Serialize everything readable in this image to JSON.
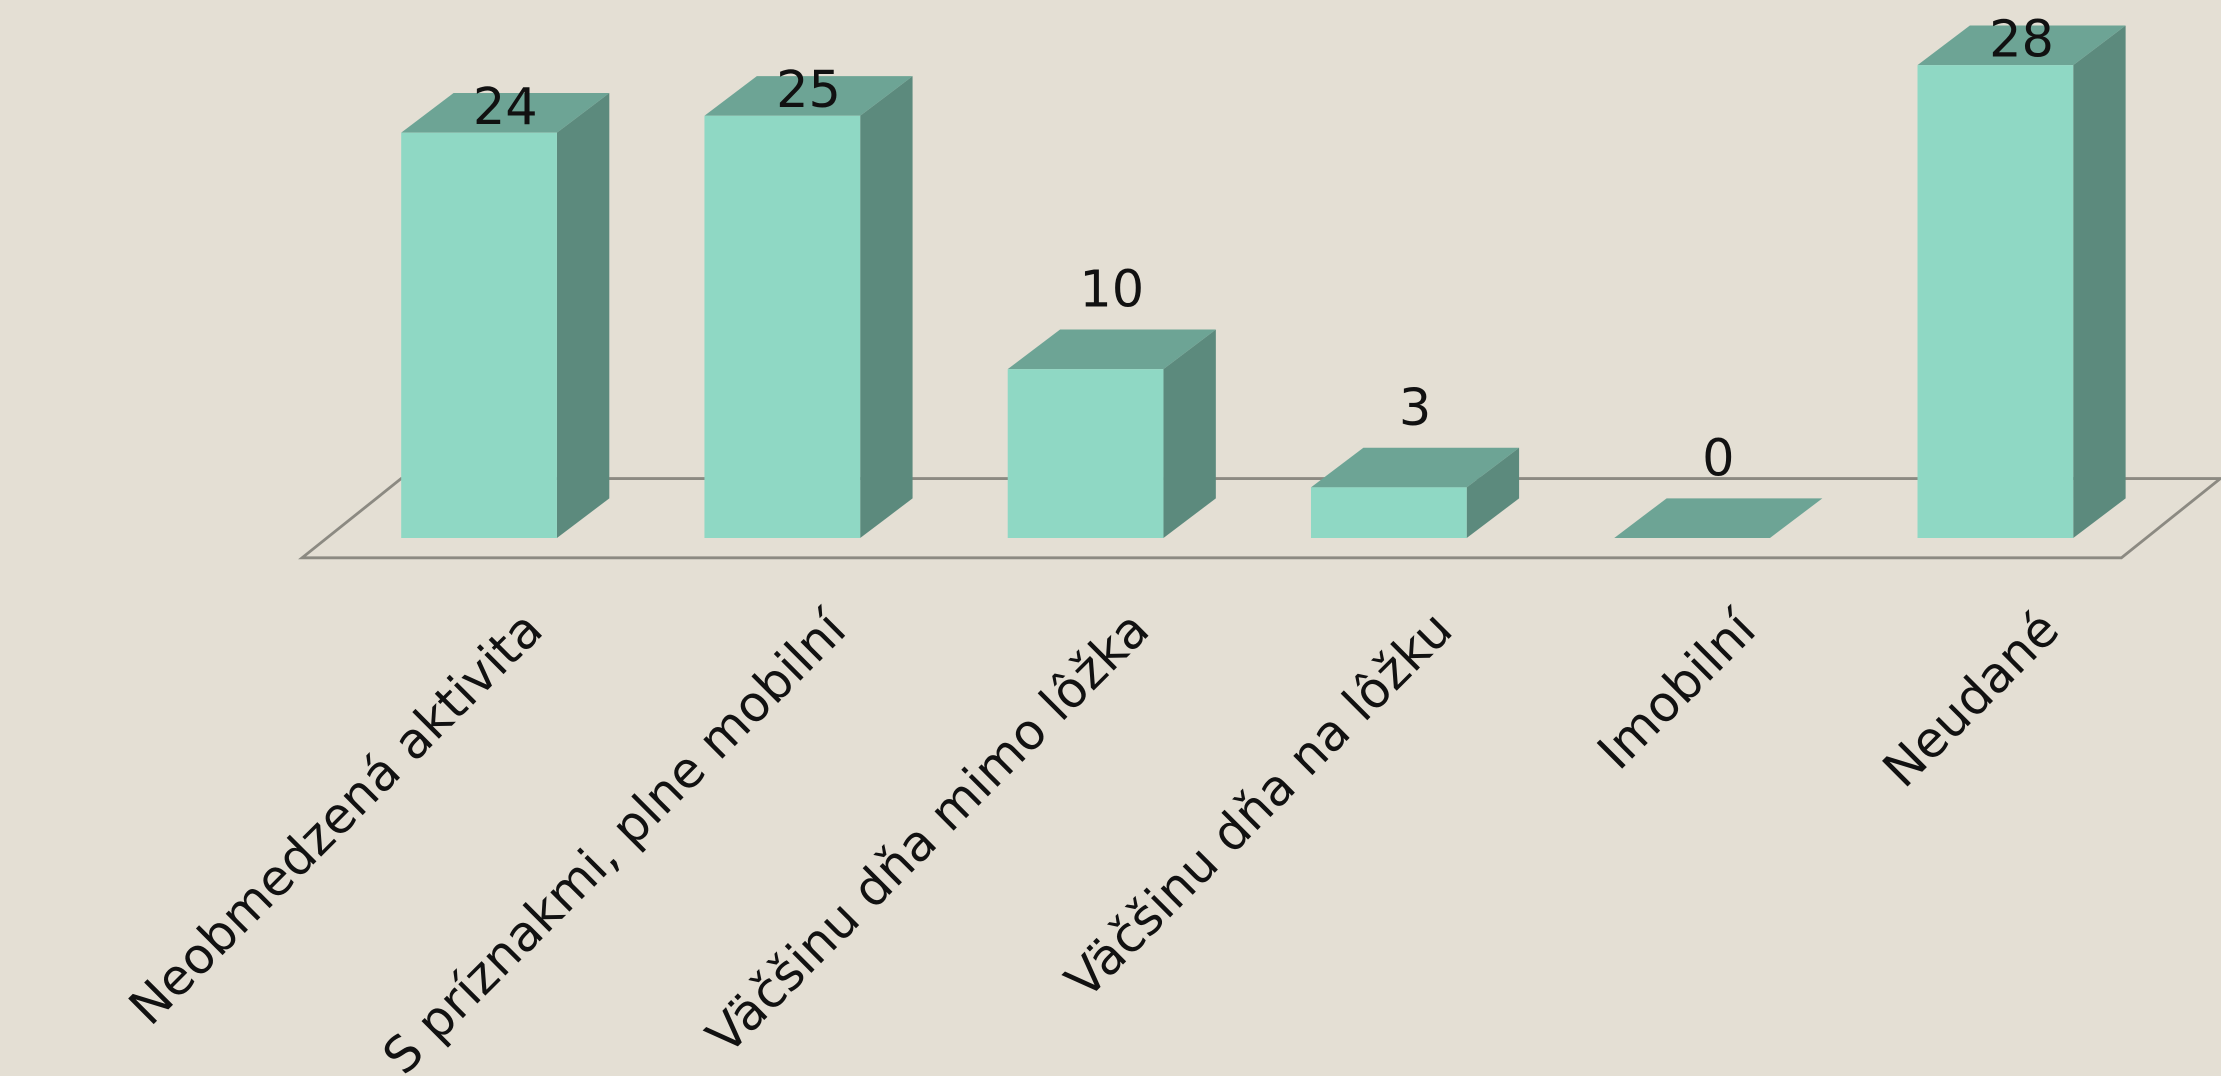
{
  "chart_data": {
    "type": "bar3d",
    "categories": [
      "Neobmedzená aktivita",
      "S príznakmi, plne mobilní",
      "Väčšinu dňa mimo lôžka",
      "Väčšinu dňa na lôžku",
      "Imobilní",
      "Neudané"
    ],
    "values": [
      24,
      25,
      10,
      3,
      0,
      28
    ],
    "color": "#8fd8c4"
  }
}
